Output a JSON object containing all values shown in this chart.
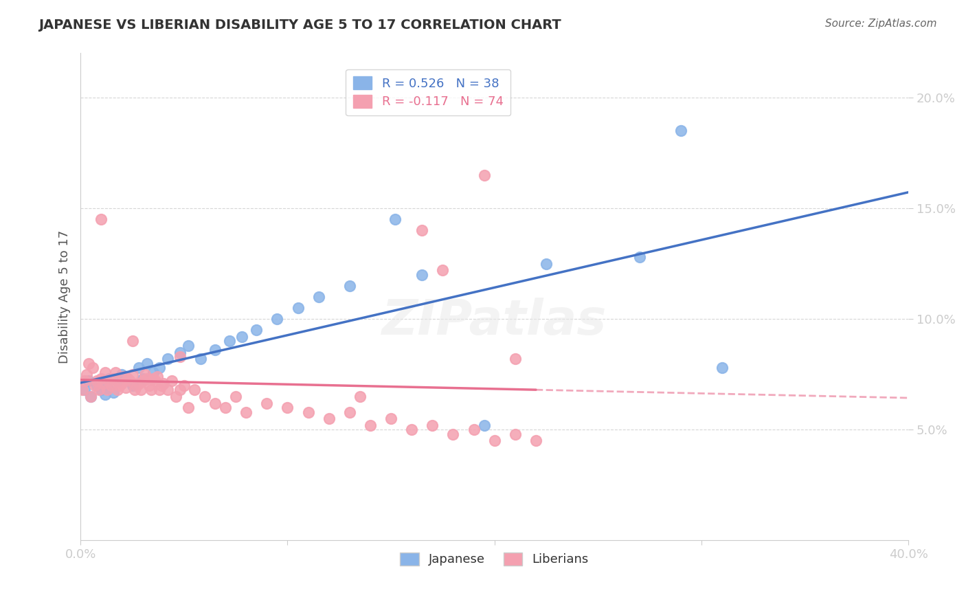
{
  "title": "JAPANESE VS LIBERIAN DISABILITY AGE 5 TO 17 CORRELATION CHART",
  "source": "Source: ZipAtlas.com",
  "xlabel": "",
  "ylabel": "Disability Age 5 to 17",
  "xlim": [
    0.0,
    0.4
  ],
  "ylim": [
    0.0,
    0.22
  ],
  "xticks": [
    0.0,
    0.1,
    0.2,
    0.3,
    0.4
  ],
  "xtick_labels": [
    "0.0%",
    "",
    "",
    "",
    "40.0%"
  ],
  "yticks": [
    0.05,
    0.1,
    0.15,
    0.2
  ],
  "ytick_labels": [
    "5.0%",
    "10.0%",
    "15.0%",
    "20.0%"
  ],
  "japanese_R": 0.526,
  "japanese_N": 38,
  "liberian_R": -0.117,
  "liberian_N": 74,
  "japanese_color": "#8ab4e8",
  "liberian_color": "#f4a0b0",
  "japanese_line_color": "#4472c4",
  "liberian_line_color": "#e87090",
  "watermark": "ZIPatlas",
  "japanese_x": [
    0.002,
    0.004,
    0.005,
    0.008,
    0.01,
    0.011,
    0.012,
    0.013,
    0.014,
    0.016,
    0.018,
    0.02,
    0.022,
    0.025,
    0.028,
    0.03,
    0.032,
    0.035,
    0.038,
    0.042,
    0.048,
    0.052,
    0.058,
    0.065,
    0.072,
    0.078,
    0.085,
    0.095,
    0.105,
    0.115,
    0.13,
    0.165,
    0.195,
    0.225,
    0.27,
    0.29,
    0.152,
    0.31
  ],
  "japanese_y": [
    0.068,
    0.072,
    0.065,
    0.07,
    0.068,
    0.071,
    0.066,
    0.069,
    0.073,
    0.067,
    0.072,
    0.075,
    0.074,
    0.07,
    0.078,
    0.073,
    0.08,
    0.076,
    0.078,
    0.082,
    0.085,
    0.088,
    0.082,
    0.086,
    0.09,
    0.092,
    0.095,
    0.1,
    0.105,
    0.11,
    0.115,
    0.12,
    0.052,
    0.125,
    0.128,
    0.185,
    0.145,
    0.078
  ],
  "liberian_x": [
    0.001,
    0.002,
    0.003,
    0.004,
    0.005,
    0.006,
    0.007,
    0.008,
    0.009,
    0.01,
    0.011,
    0.012,
    0.013,
    0.014,
    0.015,
    0.016,
    0.017,
    0.018,
    0.019,
    0.02,
    0.021,
    0.022,
    0.023,
    0.024,
    0.025,
    0.026,
    0.027,
    0.028,
    0.029,
    0.03,
    0.031,
    0.032,
    0.033,
    0.034,
    0.035,
    0.036,
    0.037,
    0.038,
    0.039,
    0.04,
    0.042,
    0.044,
    0.046,
    0.048,
    0.05,
    0.052,
    0.055,
    0.06,
    0.065,
    0.07,
    0.075,
    0.08,
    0.09,
    0.1,
    0.11,
    0.12,
    0.13,
    0.14,
    0.15,
    0.16,
    0.17,
    0.18,
    0.19,
    0.2,
    0.21,
    0.22,
    0.165,
    0.175,
    0.21,
    0.01,
    0.048,
    0.025,
    0.195,
    0.135
  ],
  "liberian_y": [
    0.068,
    0.072,
    0.075,
    0.08,
    0.065,
    0.078,
    0.07,
    0.072,
    0.068,
    0.073,
    0.071,
    0.076,
    0.068,
    0.072,
    0.07,
    0.073,
    0.076,
    0.068,
    0.07,
    0.071,
    0.074,
    0.069,
    0.073,
    0.072,
    0.075,
    0.068,
    0.07,
    0.071,
    0.068,
    0.072,
    0.075,
    0.073,
    0.07,
    0.068,
    0.073,
    0.072,
    0.074,
    0.068,
    0.07,
    0.071,
    0.068,
    0.072,
    0.065,
    0.068,
    0.07,
    0.06,
    0.068,
    0.065,
    0.062,
    0.06,
    0.065,
    0.058,
    0.062,
    0.06,
    0.058,
    0.055,
    0.058,
    0.052,
    0.055,
    0.05,
    0.052,
    0.048,
    0.05,
    0.045,
    0.048,
    0.045,
    0.14,
    0.122,
    0.082,
    0.145,
    0.083,
    0.09,
    0.165,
    0.065
  ]
}
